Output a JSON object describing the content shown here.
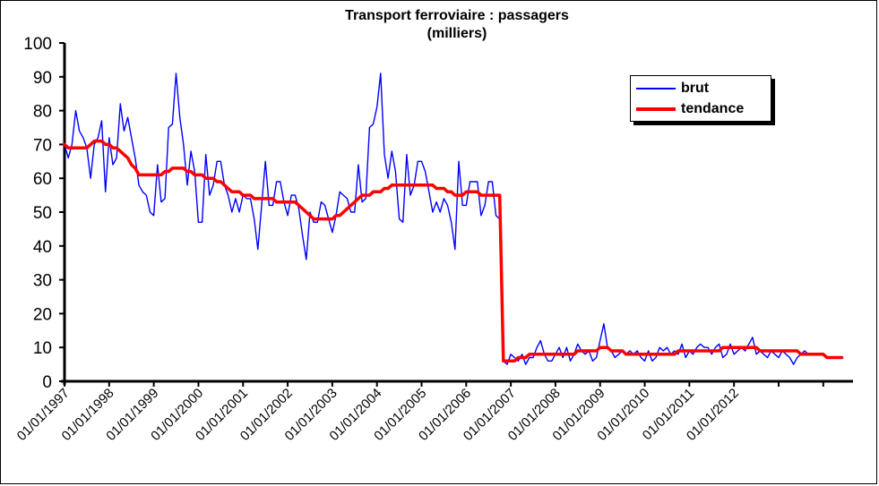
{
  "chart_data": {
    "type": "line",
    "title": "Transport ferroviaire : passagers",
    "subtitle": "(milliers)",
    "ylim": [
      0,
      100
    ],
    "y_ticks": [
      0,
      10,
      20,
      30,
      40,
      50,
      60,
      70,
      80,
      90,
      100
    ],
    "x_tick_labels": [
      "01/01/1997",
      "01/01/1998",
      "01/01/1999",
      "01/01/2000",
      "01/01/2001",
      "01/01/2002",
      "01/01/2003",
      "01/01/2004",
      "01/01/2005",
      "01/01/2006",
      "01/01/2007",
      "01/01/2008",
      "01/01/2009",
      "01/01/2010",
      "01/01/2011",
      "01/01/2012"
    ],
    "x_start": "01/01/1997",
    "legend_position": "top-right",
    "grid": false,
    "series": [
      {
        "name": "brut",
        "color": "#0000ff",
        "values": [
          70,
          66,
          70,
          80,
          74,
          72,
          69,
          60,
          70,
          72,
          77,
          56,
          72,
          64,
          66,
          82,
          74,
          78,
          72,
          66,
          58,
          56,
          55,
          50,
          49,
          64,
          53,
          54,
          75,
          76,
          91,
          78,
          70,
          58,
          68,
          62,
          47,
          47,
          67,
          55,
          58,
          65,
          65,
          58,
          55,
          50,
          54,
          50,
          55,
          54,
          54,
          48,
          39,
          52,
          65,
          52,
          52,
          59,
          59,
          53,
          49,
          55,
          55,
          51,
          43,
          36,
          50,
          47,
          47,
          53,
          52,
          48,
          44,
          49,
          56,
          55,
          54,
          50,
          50,
          64,
          53,
          54,
          75,
          76,
          81,
          91,
          67,
          60,
          68,
          62,
          48,
          47,
          67,
          55,
          58,
          65,
          65,
          62,
          56,
          50,
          53,
          50,
          54,
          52,
          47,
          39,
          65,
          52,
          52,
          59,
          59,
          59,
          49,
          52,
          59,
          59,
          49,
          48,
          6,
          5,
          8,
          7,
          6,
          8,
          5,
          7,
          7,
          10,
          12,
          8,
          6,
          6,
          8,
          10,
          7,
          10,
          6,
          8,
          11,
          9,
          8,
          9,
          6,
          7,
          12,
          17,
          10,
          9,
          7,
          8,
          9,
          8,
          9,
          8,
          9,
          7,
          6,
          9,
          6,
          7,
          10,
          9,
          10,
          8,
          9,
          8,
          11,
          7,
          9,
          8,
          10,
          11,
          10,
          10,
          8,
          10,
          11,
          7,
          8,
          11,
          8,
          9,
          10,
          9,
          11,
          13,
          8,
          9,
          8,
          7,
          9,
          8,
          7,
          9,
          8,
          7,
          5,
          7,
          8,
          9,
          8,
          8
        ],
        "values_note_removed": true
      },
      {
        "name": "tendance",
        "color": "#ff0000",
        "values": [
          70,
          69,
          69,
          69,
          69,
          69,
          69,
          70,
          71,
          71,
          71,
          70,
          70,
          69,
          69,
          68,
          67,
          66,
          64,
          63,
          61,
          61,
          61,
          61,
          61,
          61,
          61,
          62,
          62,
          63,
          63,
          63,
          63,
          62,
          62,
          61,
          61,
          61,
          60,
          60,
          60,
          59,
          59,
          58,
          57,
          56,
          56,
          56,
          55,
          55,
          55,
          54,
          54,
          54,
          54,
          54,
          54,
          53,
          53,
          53,
          53,
          53,
          53,
          52,
          51,
          50,
          49,
          48,
          48,
          48,
          48,
          48,
          48,
          49,
          49,
          50,
          51,
          52,
          53,
          54,
          55,
          55,
          55,
          56,
          56,
          56,
          57,
          57,
          58,
          58,
          58,
          58,
          58,
          58,
          58,
          58,
          58,
          58,
          58,
          58,
          57,
          57,
          57,
          56,
          56,
          55,
          55,
          55,
          56,
          56,
          56,
          56,
          55,
          55,
          55,
          55,
          55,
          55,
          6,
          6,
          6,
          6,
          7,
          7,
          7,
          8,
          8,
          8,
          8,
          8,
          8,
          8,
          8,
          8,
          8,
          8,
          8,
          8,
          9,
          9,
          9,
          9,
          9,
          9,
          10,
          10,
          10,
          9,
          9,
          9,
          9,
          8,
          8,
          8,
          8,
          8,
          8,
          8,
          8,
          8,
          8,
          8,
          8,
          8,
          8,
          9,
          9,
          9,
          9,
          9,
          9,
          9,
          9,
          9,
          9,
          9,
          9,
          10,
          10,
          10,
          10,
          10,
          10,
          10,
          10,
          10,
          10,
          9,
          9,
          9,
          9,
          9,
          9,
          9,
          9,
          9,
          9,
          9,
          8,
          8,
          8,
          8,
          8,
          8,
          8,
          7,
          7,
          7,
          7,
          7
        ]
      }
    ]
  },
  "legend": {
    "brut": "brut",
    "tendance": "tendance"
  }
}
